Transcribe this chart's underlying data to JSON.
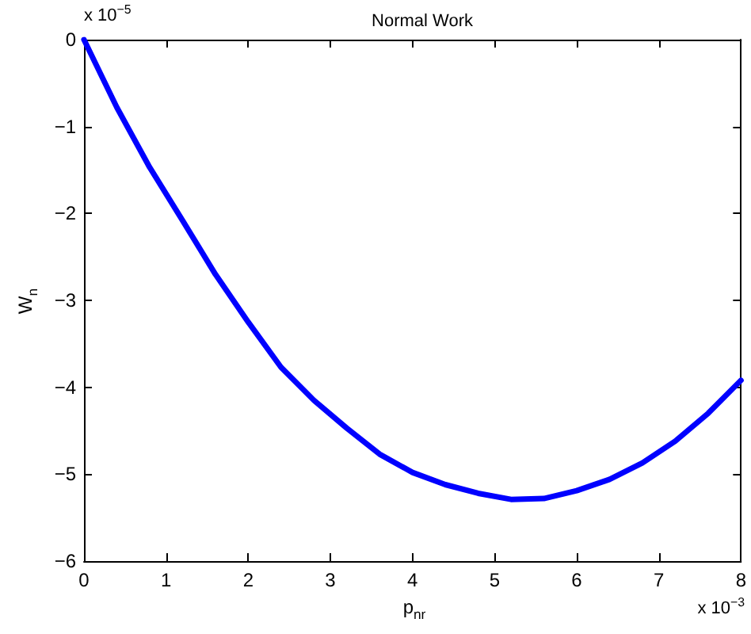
{
  "chart_data": {
    "type": "line",
    "title": "Normal Work",
    "xlabel": "p$_{nr}$",
    "ylabel": "W$_{n}$",
    "annotations": [
      "x 10$^{−5}$",
      "x 10$^{−3}$"
    ],
    "x": [
      0,
      0.4,
      0.8,
      1.2,
      1.6,
      2,
      2.4,
      2.8,
      3.2,
      3.6,
      4,
      4.4,
      4.8,
      5.2,
      5.6,
      6,
      6.4,
      6.8,
      7.2,
      7.6,
      8
    ],
    "series": [
      {
        "color": "#0000ff",
        "values": [
          0,
          -0.78,
          -1.47,
          -2.08,
          -2.7,
          -3.25,
          -3.77,
          -4.15,
          -4.47,
          -4.77,
          -4.98,
          -5.12,
          -5.22,
          -5.29,
          -5.28,
          -5.19,
          -5.06,
          -4.87,
          -4.62,
          -4.3,
          -3.92
        ]
      }
    ],
    "xlim": [
      0,
      8
    ],
    "ylim": [
      -6,
      0
    ],
    "xticks": [
      0,
      1,
      2,
      3,
      4,
      5,
      6,
      7,
      8
    ],
    "yticks": [
      -6,
      -5,
      -4,
      -3,
      -2,
      -1,
      0
    ],
    "grid": false,
    "marker": "none",
    "line_style": "solid"
  }
}
